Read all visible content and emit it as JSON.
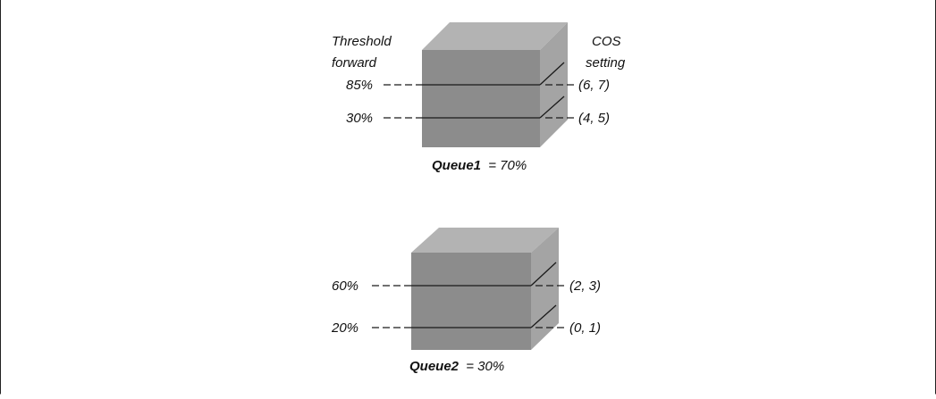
{
  "headers": {
    "threshold": [
      "Threshold",
      "forward"
    ],
    "cos": [
      "COS",
      "setting"
    ]
  },
  "queues": [
    {
      "name": "Queue1",
      "share": "= 70%",
      "levels": [
        {
          "threshold": "85%",
          "cos": "(6, 7)"
        },
        {
          "threshold": "30%",
          "cos": "(4, 5)"
        }
      ]
    },
    {
      "name": "Queue2",
      "share": "= 30%",
      "levels": [
        {
          "threshold": "60%",
          "cos": "(2, 3)"
        },
        {
          "threshold": "20%",
          "cos": "(0, 1)"
        }
      ]
    }
  ],
  "colors": {
    "cube_front": "#8c8c8c",
    "cube_top": "#b3b3b3",
    "cube_side": "#a4a4a4",
    "line": "#1a1a1a"
  }
}
